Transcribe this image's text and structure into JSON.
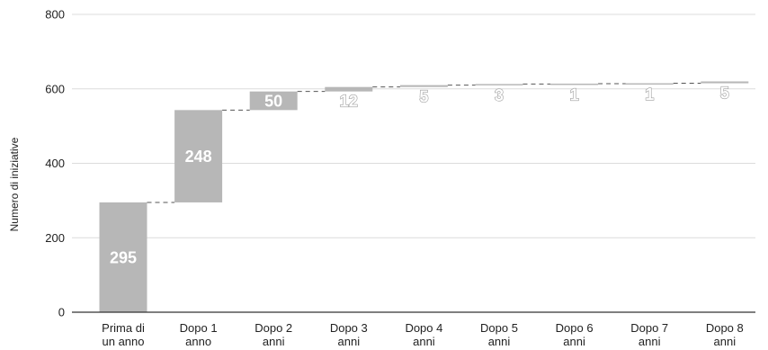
{
  "chart_data": {
    "type": "waterfall",
    "ylabel": "Numero di iniziative",
    "xlabel": "",
    "title": "",
    "ylim": [
      0,
      800
    ],
    "yticks": [
      0,
      200,
      400,
      600,
      800
    ],
    "categories": [
      [
        "Prima di",
        "un anno"
      ],
      [
        "Dopo 1",
        "anno"
      ],
      [
        "Dopo 2",
        "anni"
      ],
      [
        "Dopo 3",
        "anni"
      ],
      [
        "Dopo 4",
        "anni"
      ],
      [
        "Dopo 5",
        "anni"
      ],
      [
        "Dopo 6",
        "anni"
      ],
      [
        "Dopo 7",
        "anni"
      ],
      [
        "Dopo 8",
        "anni"
      ]
    ],
    "values": [
      295,
      248,
      50,
      12,
      5,
      3,
      1,
      1,
      5
    ],
    "grid": true,
    "connector_lines": true,
    "bar_color": "#b7b7b7"
  }
}
